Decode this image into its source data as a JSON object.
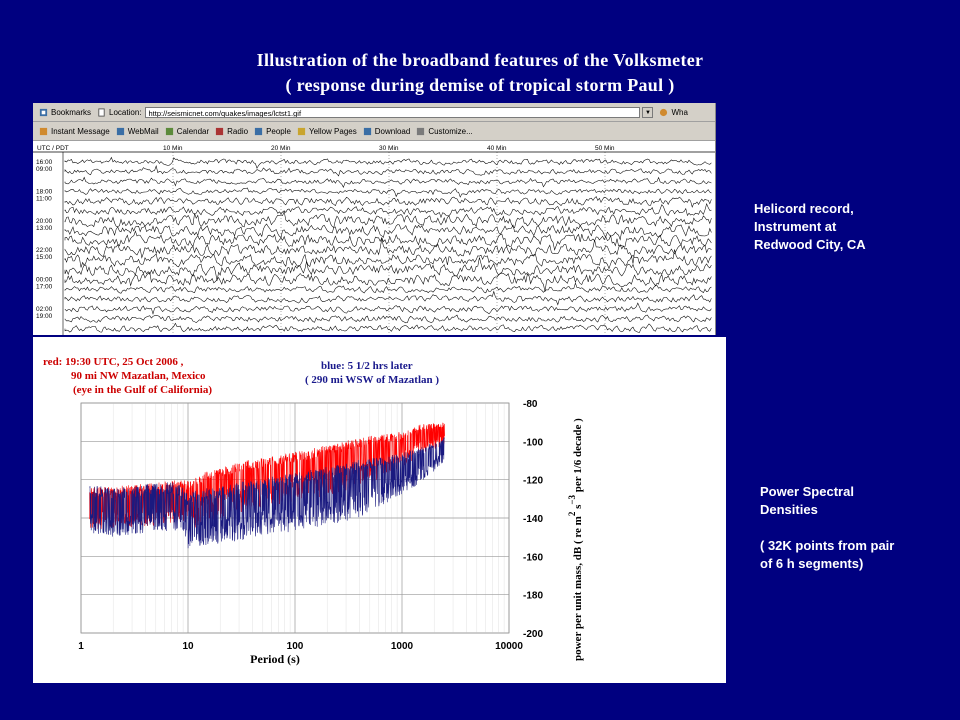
{
  "slide": {
    "title_line1": "Illustration of the broadband features of the Volksmeter",
    "title_line2": "( response during demise of tropical storm Paul )"
  },
  "browser": {
    "toolbar1": {
      "bookmarks": "Bookmarks",
      "location_label": "Location:",
      "url": "http://seismicnet.com/quakes/images/lctst1.gif",
      "whats_related": "Wha"
    },
    "toolbar2": {
      "items": [
        "Instant Message",
        "WebMail",
        "Calendar",
        "Radio",
        "People",
        "Yellow Pages",
        "Download",
        "Customize..."
      ]
    },
    "helicord": {
      "header": "UTC / PDT",
      "minute_marks": [
        "10 Min",
        "20 Min",
        "30 Min",
        "40 Min",
        "50 Min"
      ],
      "row_labels": [
        [
          "16:00",
          "09:00"
        ],
        [
          "18:00",
          "11:00"
        ],
        [
          "20:00",
          "13:00"
        ],
        [
          "22:00",
          "15:00"
        ],
        [
          "00:00",
          "17:00"
        ],
        [
          "02:00",
          "19:00"
        ]
      ]
    }
  },
  "side_notes": {
    "helicord": [
      "Helicord record,",
      "Instrument at",
      "Redwood City, CA"
    ],
    "psd": [
      "Power Spectral",
      "Densities",
      "",
      "( 32K points from pair",
      "of 6 h segments)"
    ]
  },
  "colors": {
    "background": "#000080",
    "red_series": "#ff0000",
    "blue_series": "#1a1a80",
    "label_red": "#cc0000",
    "label_blue": "#1a1a8c"
  },
  "chart_data": {
    "type": "line",
    "x_scale": "log",
    "xlabel": "Period (s)",
    "ylabel": "power per unit mass, dB  ( re  m² s⁻³  per 1/6 decade )",
    "ylabel_parts": {
      "main": "power per unit mass, dB  ( re  m",
      "sup1": "2",
      "mid": "  s",
      "sup2": "−3",
      "tail": "  per 1/6 decade )"
    },
    "xlim": [
      1,
      10000
    ],
    "ylim": [
      -200,
      -80
    ],
    "x_ticks": [
      1,
      10,
      100,
      1000,
      10000
    ],
    "y_ticks": [
      -80,
      -100,
      -120,
      -140,
      -160,
      -180,
      -200
    ],
    "grid": true,
    "annotations": {
      "red": [
        "red:  19:30 UTC, 25 Oct 2006 ,",
        "90 mi NW Mazatlan, Mexico",
        "(eye in the Gulf of California)"
      ],
      "blue": [
        "blue:   5 1/2 hrs later",
        "( 290 mi WSW of Mazatlan )"
      ]
    },
    "series": [
      {
        "name": "red",
        "color": "#ff0000",
        "points": [
          [
            1.2,
            -132
          ],
          [
            2,
            -132
          ],
          [
            3,
            -131
          ],
          [
            5,
            -130
          ],
          [
            8,
            -128
          ],
          [
            10,
            -129
          ],
          [
            15,
            -124
          ],
          [
            30,
            -119
          ],
          [
            100,
            -114
          ],
          [
            300,
            -108
          ],
          [
            1000,
            -101
          ],
          [
            1500,
            -96
          ],
          [
            2500,
            -94
          ]
        ],
        "spread": 14
      },
      {
        "name": "blue",
        "color": "#1a1a80",
        "points": [
          [
            1.2,
            -132
          ],
          [
            2,
            -134
          ],
          [
            3,
            -133
          ],
          [
            5,
            -131
          ],
          [
            8,
            -131
          ],
          [
            10,
            -137
          ],
          [
            12,
            -135
          ],
          [
            30,
            -131
          ],
          [
            100,
            -126
          ],
          [
            300,
            -121
          ],
          [
            1000,
            -113
          ],
          [
            1500,
            -109
          ],
          [
            2500,
            -102
          ]
        ],
        "spread": 16
      }
    ]
  }
}
